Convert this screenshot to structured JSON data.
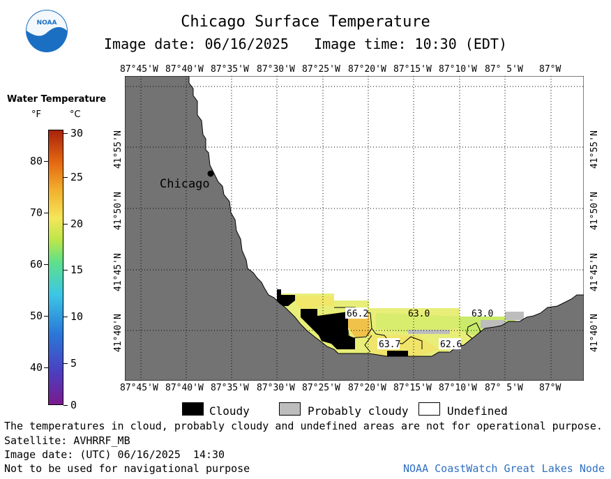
{
  "header": {
    "logo_text": "NOAA",
    "title": "Chicago Surface Temperature",
    "subtitle": "Image date: 06/16/2025   Image time: 10:30 (EDT)"
  },
  "legend": {
    "title": "Water Temperature",
    "unit_f": "°F",
    "unit_c": "°C",
    "f_ticks": [
      "80",
      "70",
      "60",
      "50",
      "40"
    ],
    "c_ticks": [
      "30",
      "25",
      "20",
      "15",
      "10",
      "5",
      "0"
    ]
  },
  "map": {
    "lon_labels": [
      "87°45'W",
      "87°40'W",
      "87°35'W",
      "87°30'W",
      "87°25'W",
      "87°20'W",
      "87°15'W",
      "87°10'W",
      "87° 5'W",
      "87°W"
    ],
    "lat_labels": [
      "41°55'N",
      "41°50'N",
      "41°45'N",
      "41°40'N"
    ],
    "city_label": "Chicago",
    "temperature_labels": [
      "66.2",
      "63.0",
      "63.0",
      "63.7",
      "62.6"
    ]
  },
  "key": {
    "cloudy": "Cloudy",
    "probably_cloudy": "Probably cloudy",
    "undefined": "Undefined"
  },
  "notes": {
    "disclaimer": "The temperatures in cloud, probably cloudy and undefined areas are not for operational purpose.",
    "satellite": "Satellite: AVHRRF_MB",
    "utc_date": "Image date: (UTC) 06/16/2025  14:30",
    "navigation": "Not to be used for navigational purpose",
    "credit": "NOAA CoastWatch Great Lakes Node"
  },
  "colors": {
    "land": "#737373",
    "cloudy": "#000000",
    "probably_cloudy": "#bdbdbd",
    "undefined": "#ffffff",
    "credit_text": "#2f6fc2"
  }
}
